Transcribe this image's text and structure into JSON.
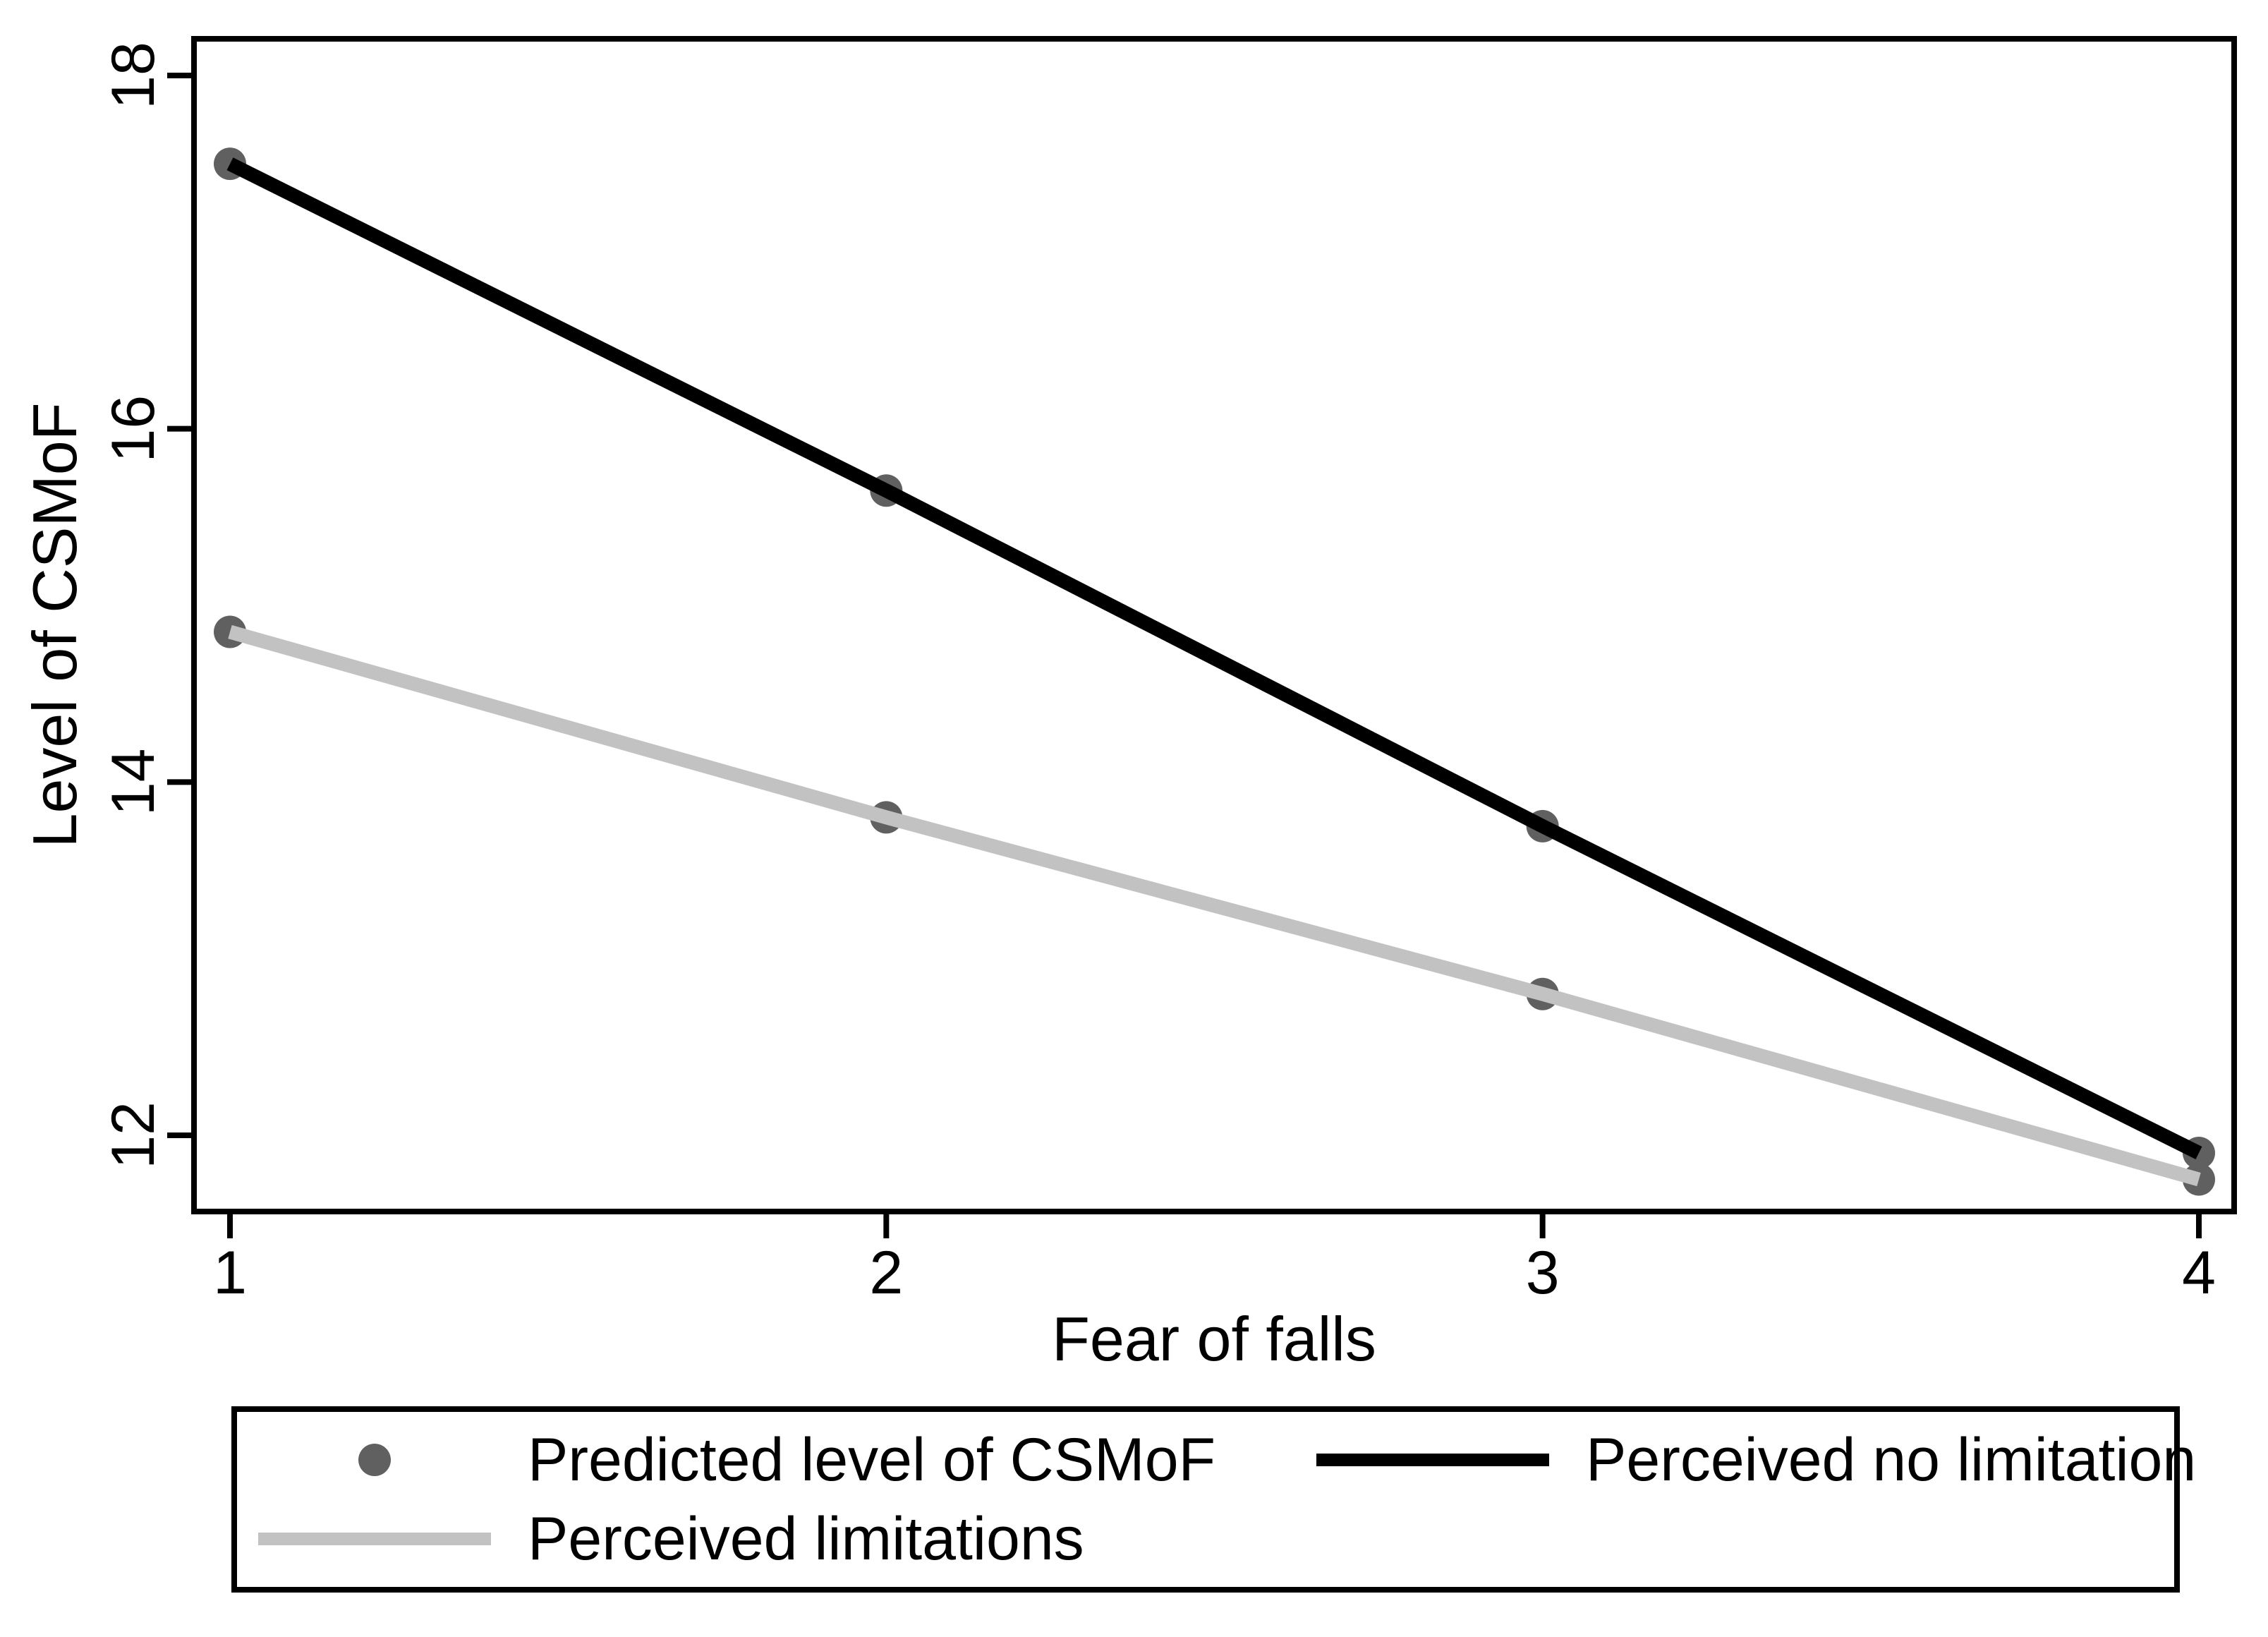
{
  "chart_data": {
    "type": "line",
    "title": "",
    "xlabel": "Fear of falls",
    "ylabel": "Level of CSMoF",
    "x_ticks": [
      "1",
      "2",
      "3",
      "4"
    ],
    "y_ticks": [
      "12",
      "14",
      "16",
      "18"
    ],
    "x": [
      1,
      2,
      3,
      4
    ],
    "xlim": [
      0.95,
      4.05
    ],
    "ylim": [
      11.55,
      18.2
    ],
    "grid": false,
    "series": [
      {
        "name": "Perceived no limitation",
        "color": "#000000",
        "values": [
          17.5,
          15.65,
          13.75,
          11.9
        ]
      },
      {
        "name": "Perceived limitations",
        "color": "#c2c2c2",
        "values": [
          14.85,
          13.8,
          12.8,
          11.75
        ]
      }
    ],
    "markers": {
      "label": "Predicted level of CSMoF",
      "color": "#606060",
      "note": "filled circle shown at every data point of both series"
    },
    "legend": {
      "position": "bottom",
      "items": [
        {
          "key": "dot-marker",
          "label": "Predicted level of CSMoF"
        },
        {
          "key": "black-line",
          "label": "Perceived no limitation"
        },
        {
          "key": "gray-line",
          "label": "Perceived limitations"
        }
      ]
    },
    "colors": {
      "axis": "#000000",
      "text": "#000000",
      "background": "#ffffff"
    }
  }
}
